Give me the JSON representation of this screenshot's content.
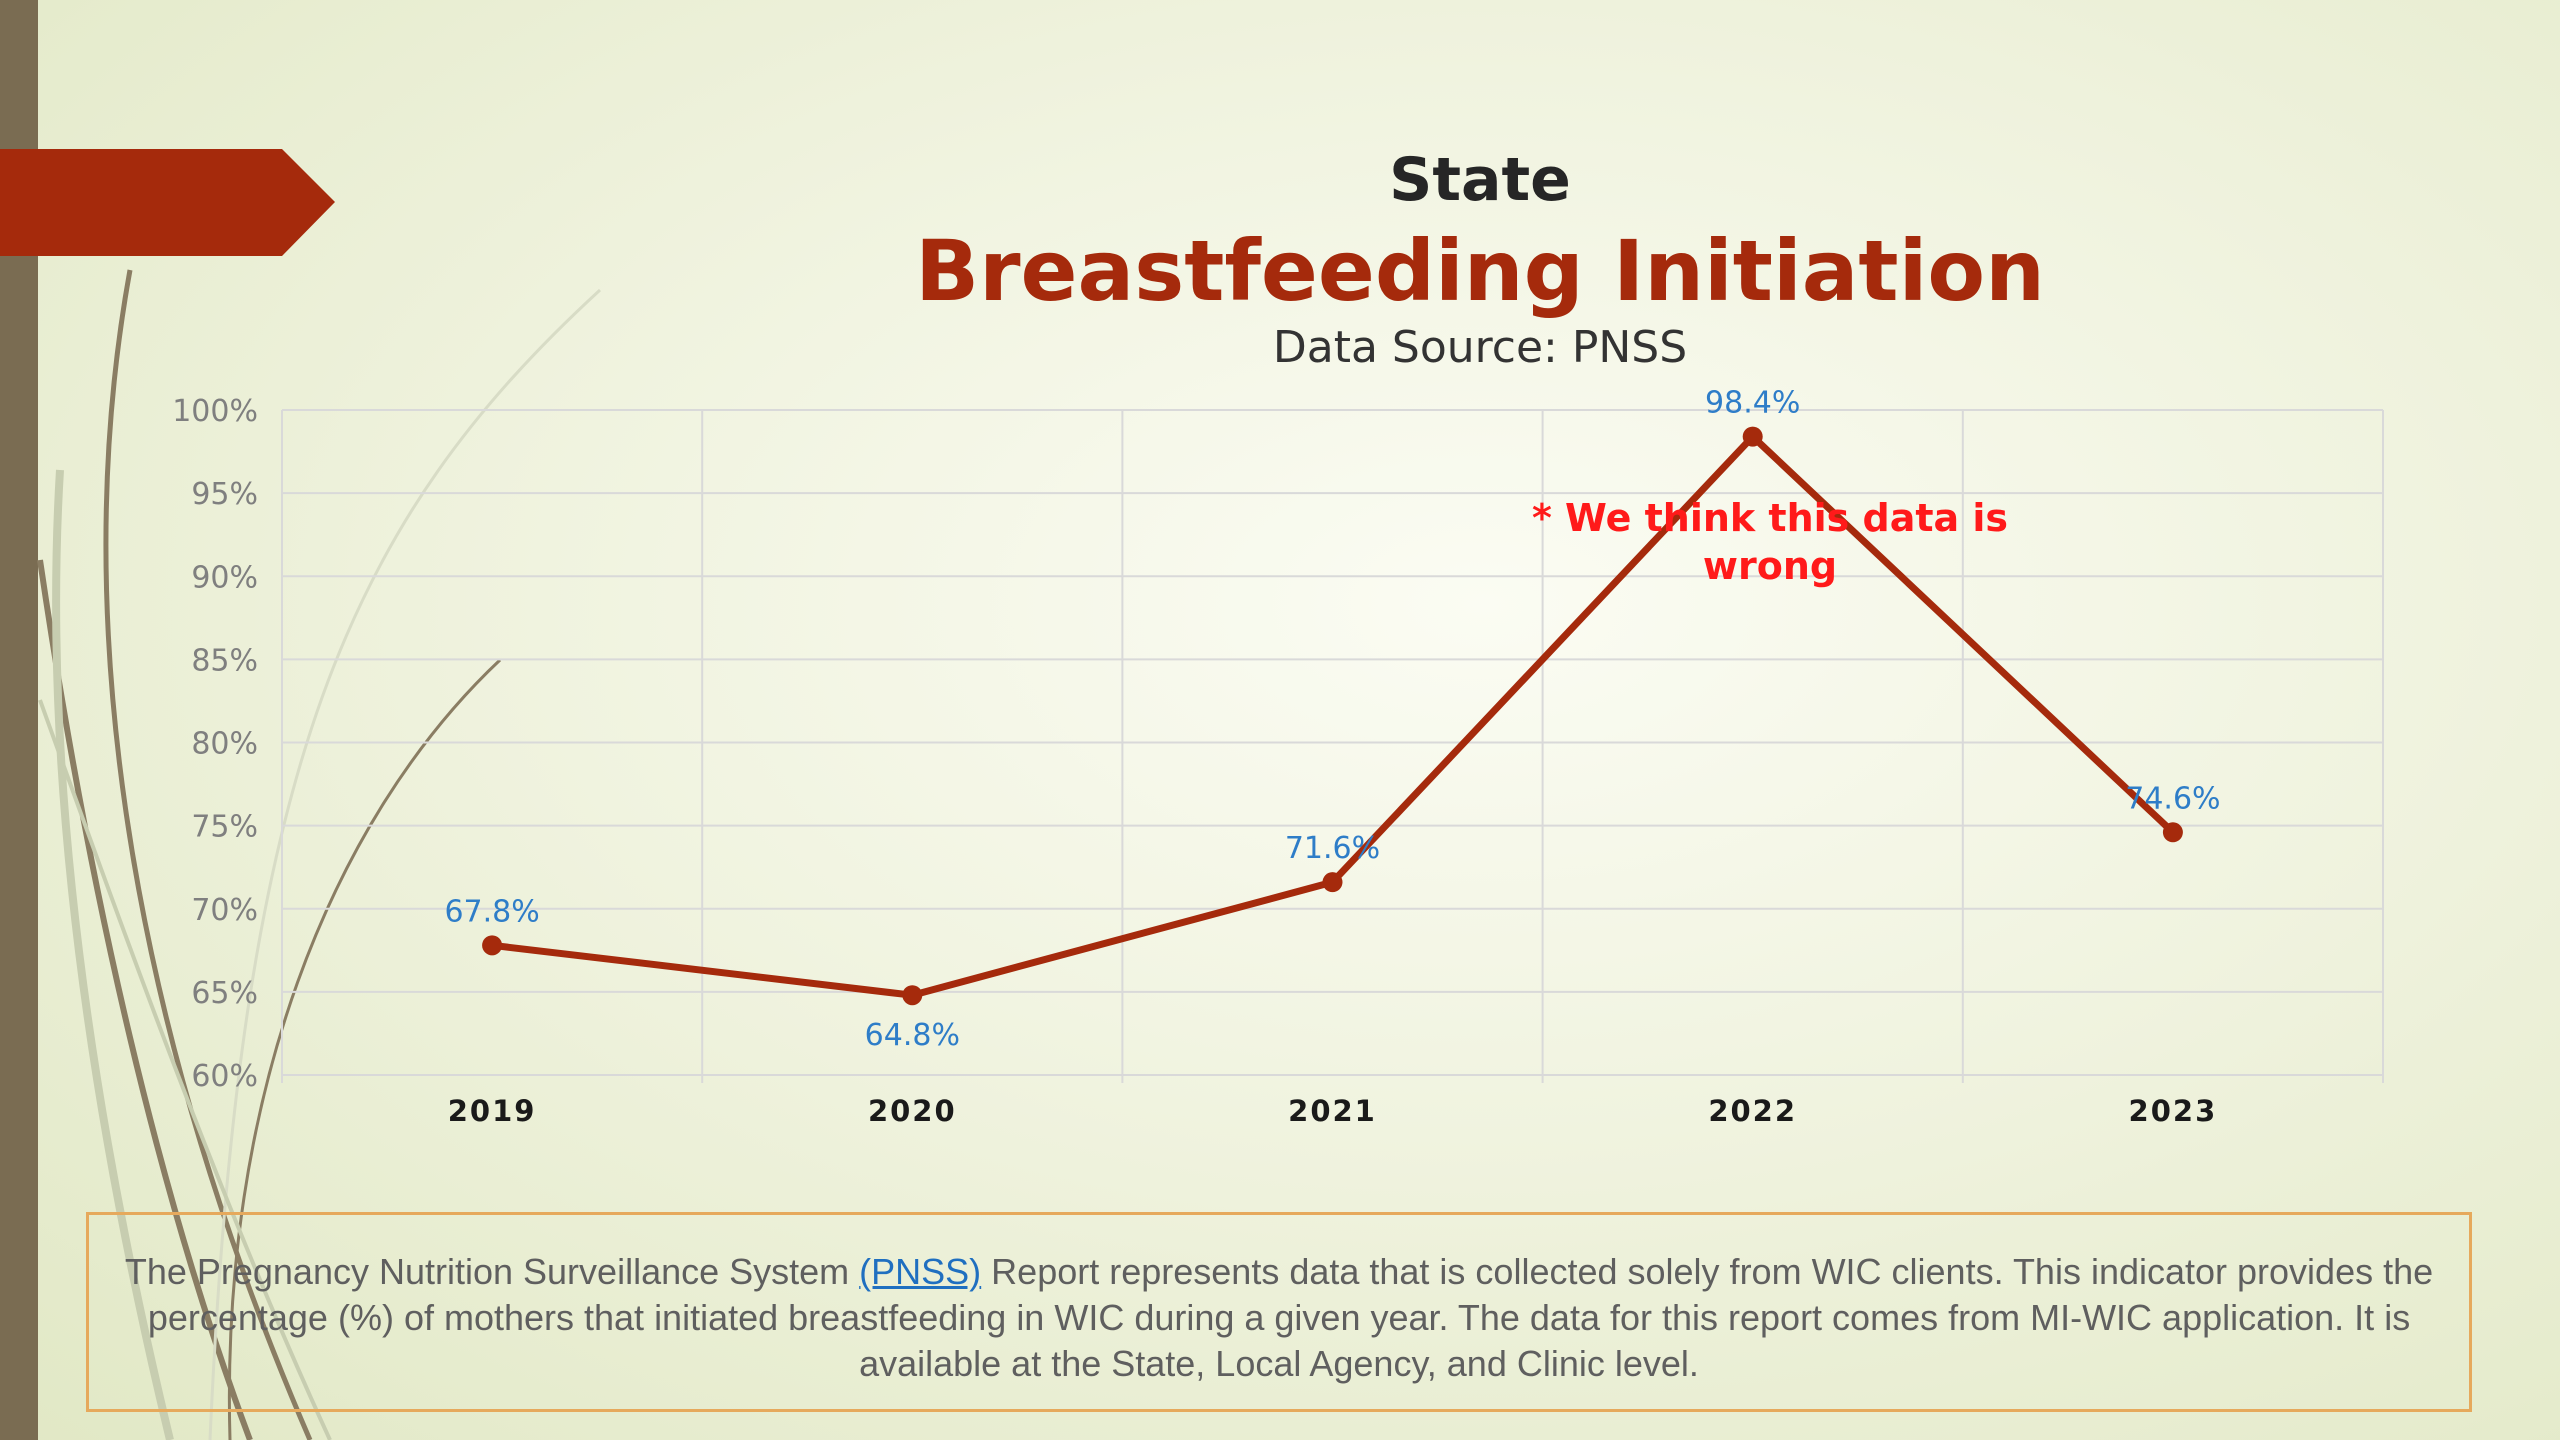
{
  "slide": {
    "heading": "State",
    "title": "Breastfeeding Initiation",
    "source": "Data Source: PNSS",
    "note": "* We think this data is wrong"
  },
  "chart_data": {
    "type": "line",
    "categories": [
      "2019",
      "2020",
      "2021",
      "2022",
      "2023"
    ],
    "series": [
      {
        "values": [
          67.8,
          64.8,
          71.6,
          98.4,
          74.6
        ],
        "labels": [
          "67.8%",
          "64.8%",
          "71.6%",
          "98.4%",
          "74.6%"
        ],
        "color": "#a52a0c"
      }
    ],
    "yticks": [
      "60%",
      "65%",
      "70%",
      "75%",
      "80%",
      "85%",
      "90%",
      "95%",
      "100%"
    ],
    "ylim": [
      60,
      100
    ],
    "grid": true,
    "label_color": "#2e7dc8",
    "annotation": "* We think this data is wrong"
  },
  "description": {
    "before_link": "The Pregnancy Nutrition Surveillance System ",
    "link": "(PNSS)",
    "after_link": " Report represents data that is collected solely from WIC clients. This indicator provides the percentage (%) of mothers that initiated breastfeeding in WIC during a given year. The data for this report comes from MI-WIC application. It is available at the State, Local Agency, and Clinic level."
  },
  "colors": {
    "accent": "#a52a0c",
    "label_blue": "#2e7dc8",
    "note_red": "#ff1a1a",
    "box_border": "#e6a95c",
    "side_bar": "#7a6c52"
  }
}
